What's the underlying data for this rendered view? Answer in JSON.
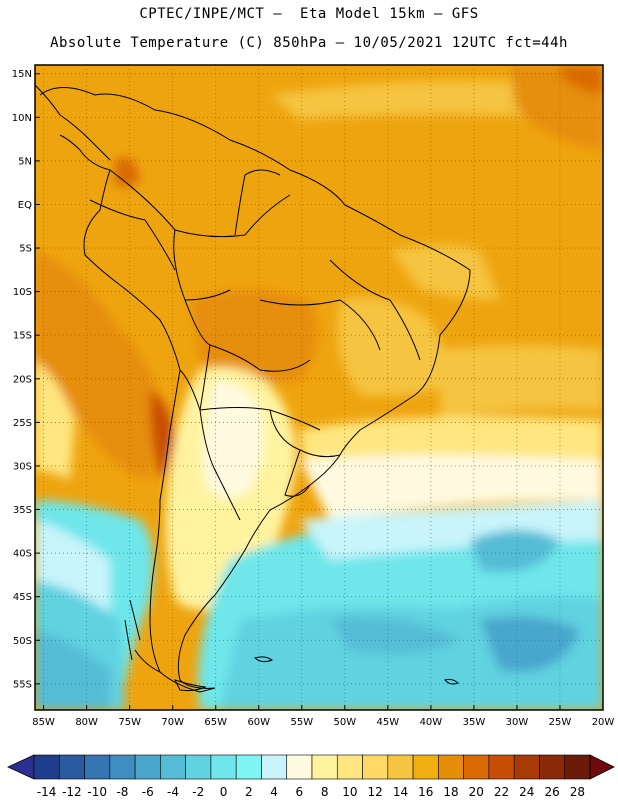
{
  "header": {
    "line1": "CPTEC/INPE/MCT –  Eta Model 15km – GFS",
    "line2": "Absolute Temperature (C) 850hPa – 10/05/2021 12UTC fct=44h"
  },
  "map": {
    "lon_range": [
      -86,
      -20
    ],
    "lat_range": [
      -58,
      16
    ],
    "lon_ticks": [
      -85,
      -80,
      -75,
      -70,
      -65,
      -60,
      -55,
      -50,
      -45,
      -40,
      -35,
      -30,
      -25,
      -20
    ],
    "lon_tick_labels": [
      "85W",
      "80W",
      "75W",
      "70W",
      "65W",
      "60W",
      "55W",
      "50W",
      "45W",
      "40W",
      "35W",
      "30W",
      "25W",
      "20W"
    ],
    "lat_ticks": [
      15,
      10,
      5,
      0,
      -5,
      -10,
      -15,
      -20,
      -25,
      -30,
      -35,
      -40,
      -45,
      -50,
      -55
    ],
    "lat_tick_labels": [
      "15N",
      "10N",
      "5N",
      "EQ",
      "5S",
      "10S",
      "15S",
      "20S",
      "25S",
      "30S",
      "35S",
      "40S",
      "45S",
      "50S",
      "55S"
    ],
    "gridlines": "dotted"
  },
  "colorbar": {
    "labels": [
      "-14",
      "-12",
      "-10",
      "-8",
      "-6",
      "-4",
      "-2",
      "0",
      "2",
      "4",
      "6",
      "8",
      "10",
      "12",
      "14",
      "16",
      "18",
      "20",
      "22",
      "24",
      "26",
      "28"
    ],
    "colors": [
      "#1f3d8c",
      "#2a5aa0",
      "#3576b2",
      "#3f8ec0",
      "#4aa6cc",
      "#55bcd6",
      "#60d2e0",
      "#6ee6ea",
      "#7ff5f5",
      "#c9f4fb",
      "#fffae0",
      "#fff3a0",
      "#ffe680",
      "#ffd966",
      "#f5c440",
      "#f0ae10",
      "#e68e0a",
      "#d96a06",
      "#c84e05",
      "#a83a06",
      "#8a2a08",
      "#6a1c08"
    ],
    "under_color": "#2b2f8f",
    "over_color": "#700810"
  }
}
